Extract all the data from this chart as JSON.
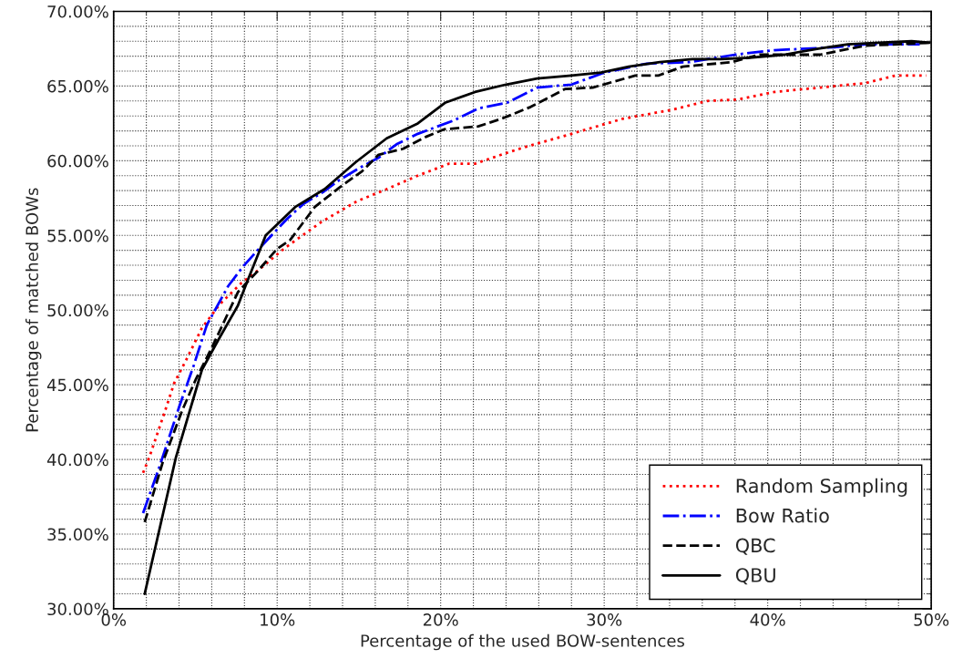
{
  "chart_data": {
    "type": "line",
    "xlabel": "Percentage of the used BOW-sentences",
    "ylabel": "Percentage of matched BOWs",
    "xlim": [
      0,
      50
    ],
    "ylim": [
      30,
      70
    ],
    "xticks": [
      {
        "value": 0,
        "label": "0%"
      },
      {
        "value": 10,
        "label": "10%"
      },
      {
        "value": 20,
        "label": "20%"
      },
      {
        "value": 30,
        "label": "30%"
      },
      {
        "value": 40,
        "label": "40%"
      },
      {
        "value": 50,
        "label": "50%"
      }
    ],
    "yticks": [
      {
        "value": 30,
        "label": "30.00%"
      },
      {
        "value": 35,
        "label": "35.00%"
      },
      {
        "value": 40,
        "label": "40.00%"
      },
      {
        "value": 45,
        "label": "45.00%"
      },
      {
        "value": 50,
        "label": "50.00%"
      },
      {
        "value": 55,
        "label": "55.00%"
      },
      {
        "value": 60,
        "label": "60.00%"
      },
      {
        "value": 65,
        "label": "65.00%"
      },
      {
        "value": 70,
        "label": "70.00%"
      }
    ],
    "grid": true,
    "legend": "bottom right",
    "series": [
      {
        "name": "Random Sampling",
        "color": "#ff0000",
        "line_style": "dotted",
        "x": [
          1.8,
          2.2,
          3.1,
          3.7,
          4.5,
          5.4,
          6.5,
          7.8,
          9.0,
          10.4,
          12.7,
          14.9,
          16.7,
          18.6,
          20.5,
          22.1,
          23.7,
          25.1,
          28.0,
          31.1,
          34.1,
          36.3,
          38.2,
          40.4,
          43.2,
          46.0,
          47.8,
          49.7
        ],
        "values": [
          39.1,
          40.2,
          43.1,
          45.1,
          46.8,
          48.8,
          50.4,
          51.8,
          52.8,
          54.1,
          55.9,
          57.3,
          58.1,
          59.0,
          59.8,
          59.8,
          60.4,
          60.9,
          61.8,
          62.8,
          63.4,
          64.0,
          64.1,
          64.6,
          64.9,
          65.2,
          65.7,
          65.7
        ]
      },
      {
        "name": "Bow Ratio",
        "color": "#0000ff",
        "line_style": "dashdot",
        "x": [
          1.8,
          2.8,
          4.0,
          4.9,
          5.7,
          7.0,
          7.9,
          8.8,
          10.6,
          11.6,
          12.8,
          13.8,
          15.0,
          16.2,
          17.3,
          18.6,
          20.8,
          22.3,
          24.1,
          25.9,
          28.0,
          30.0,
          32.6,
          35.2,
          38.0,
          40.4,
          44.1,
          46.0,
          49.3
        ],
        "values": [
          36.4,
          39.5,
          43.5,
          46.3,
          49.0,
          51.6,
          52.9,
          54.0,
          56.1,
          57.1,
          57.9,
          58.7,
          59.5,
          60.2,
          61.1,
          61.8,
          62.7,
          63.5,
          63.9,
          64.9,
          65.1,
          65.9,
          66.5,
          66.6,
          67.1,
          67.4,
          67.6,
          67.8,
          67.8
        ]
      },
      {
        "name": "QBC",
        "color": "#000000",
        "line_style": "dashed",
        "x": [
          1.9,
          3.0,
          4.2,
          5.0,
          6.1,
          7.6,
          8.8,
          10.0,
          10.8,
          12.3,
          13.8,
          15.2,
          16.2,
          17.7,
          19.1,
          20.2,
          22.3,
          23.7,
          25.5,
          27.6,
          29.3,
          31.9,
          33.3,
          34.8,
          37.8,
          39.5,
          43.2,
          45.0,
          46.0,
          49.9
        ],
        "values": [
          35.8,
          39.8,
          43.3,
          45.3,
          47.7,
          51.2,
          52.6,
          54.1,
          54.7,
          56.9,
          58.2,
          59.3,
          60.4,
          60.8,
          61.6,
          62.1,
          62.3,
          62.8,
          63.6,
          64.8,
          64.9,
          65.7,
          65.7,
          66.3,
          66.6,
          67.1,
          67.1,
          67.5,
          67.7,
          67.9
        ]
      },
      {
        "name": "QBU",
        "color": "#000000",
        "line_style": "solid",
        "x": [
          1.9,
          3.8,
          5.4,
          6.4,
          7.6,
          8.2,
          9.3,
          11.1,
          12.9,
          14.8,
          16.7,
          18.6,
          20.3,
          22.1,
          24.0,
          25.9,
          28.0,
          29.8,
          31.5,
          33.4,
          35.4,
          37.1,
          38.9,
          41.0,
          43.1,
          44.9,
          46.8,
          48.8,
          49.9
        ],
        "values": [
          31.0,
          40.1,
          46.0,
          48.0,
          50.3,
          52.0,
          55.0,
          56.9,
          58.1,
          59.9,
          61.5,
          62.5,
          63.9,
          64.6,
          65.1,
          65.5,
          65.7,
          65.9,
          66.3,
          66.6,
          66.8,
          66.8,
          66.9,
          67.1,
          67.5,
          67.8,
          67.9,
          68.0,
          67.9
        ]
      }
    ]
  }
}
